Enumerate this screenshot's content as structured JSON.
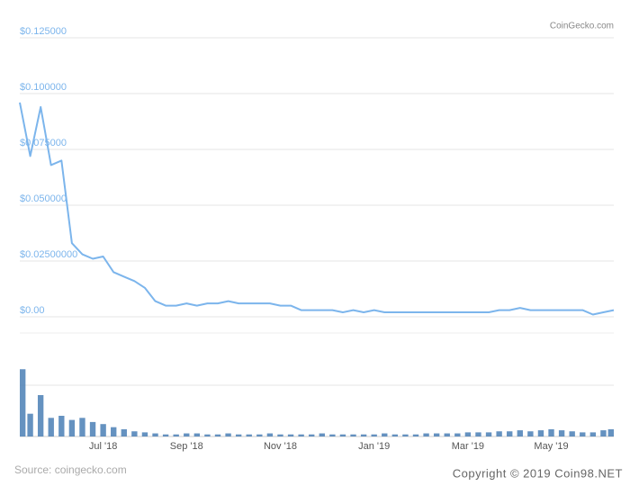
{
  "chart_data": [
    {
      "type": "line",
      "categories": [
        null,
        null,
        null,
        null,
        null,
        null,
        null,
        null,
        "Jul '18",
        null,
        null,
        null,
        null,
        null,
        null,
        null,
        "Sep '18",
        null,
        null,
        null,
        null,
        null,
        null,
        null,
        null,
        "Nov '18",
        null,
        null,
        null,
        null,
        null,
        null,
        null,
        null,
        "Jan '19",
        null,
        null,
        null,
        null,
        null,
        null,
        null,
        null,
        "Mar '19",
        null,
        null,
        null,
        null,
        null,
        null,
        null,
        "May '19",
        null,
        null,
        null,
        null,
        null,
        null
      ],
      "values": [
        0.096,
        0.072,
        0.094,
        0.068,
        0.07,
        0.033,
        0.028,
        0.026,
        0.027,
        0.02,
        0.018,
        0.016,
        0.013,
        0.007,
        0.005,
        0.005,
        0.006,
        0.005,
        0.006,
        0.006,
        0.007,
        0.006,
        0.006,
        0.006,
        0.006,
        0.005,
        0.005,
        0.003,
        0.003,
        0.003,
        0.003,
        0.002,
        0.003,
        0.002,
        0.003,
        0.002,
        0.002,
        0.002,
        0.002,
        0.002,
        0.002,
        0.002,
        0.002,
        0.002,
        0.002,
        0.002,
        0.003,
        0.003,
        0.004,
        0.003,
        0.003,
        0.003,
        0.003,
        0.003,
        0.003,
        0.001,
        0.002,
        0.003
      ],
      "color": "#7cb5ec",
      "ylim": [
        0,
        0.125
      ],
      "yticks": [
        {
          "value": 0,
          "label": "$0.00"
        },
        {
          "value": 0.025,
          "label": "$0.02500000"
        },
        {
          "value": 0.05,
          "label": "$0.050000"
        },
        {
          "value": 0.075,
          "label": "$0.075000"
        },
        {
          "value": 0.1,
          "label": "$0.100000"
        },
        {
          "value": 0.125,
          "label": "$0.125000"
        }
      ],
      "grid": true
    },
    {
      "type": "bar",
      "categories": [
        null,
        null,
        null,
        null,
        null,
        null,
        null,
        null,
        "Jul '18",
        null,
        null,
        null,
        null,
        null,
        null,
        null,
        "Sep '18",
        null,
        null,
        null,
        null,
        null,
        null,
        null,
        null,
        "Nov '18",
        null,
        null,
        null,
        null,
        null,
        null,
        null,
        null,
        "Jan '19",
        null,
        null,
        null,
        null,
        null,
        null,
        null,
        null,
        "Mar '19",
        null,
        null,
        null,
        null,
        null,
        null,
        null,
        "May '19",
        null,
        null,
        null,
        null,
        null,
        null
      ],
      "values": [
        65,
        22,
        40,
        18,
        20,
        16,
        18,
        14,
        12,
        9,
        7,
        5,
        4,
        3,
        2,
        2,
        3,
        3,
        2,
        2,
        3,
        2,
        2,
        2,
        3,
        2,
        2,
        2,
        2,
        3,
        2,
        2,
        2,
        2,
        2,
        3,
        2,
        2,
        2,
        3,
        3,
        3,
        3,
        4,
        4,
        4,
        5,
        5,
        6,
        5,
        6,
        7,
        6,
        5,
        4,
        4,
        6,
        7
      ],
      "color": "#4a7fb5",
      "ylim": [
        0,
        100
      ]
    }
  ],
  "watermark": "CoinGecko.com",
  "source": "Source: coingecko.com",
  "copyright": "Copyright © 2019 Coin98.NET"
}
